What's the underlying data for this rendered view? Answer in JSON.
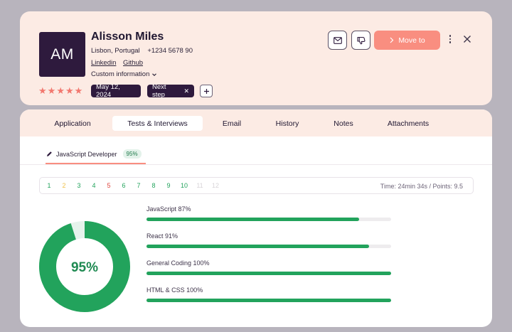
{
  "profile": {
    "initials": "AM",
    "name": "Alisson Miles",
    "location": "Lisbon, Portugal",
    "phone": "+1234 5678 90",
    "links": [
      "Linkedin",
      "Github"
    ],
    "custom_info_label": "Custom information",
    "rating": 5,
    "date_tag": "May 12, 2024",
    "step_tag": "Next step",
    "move_label": "Move to",
    "accent_color": "#f98e80",
    "dark_color": "#2e1a3d"
  },
  "tabs": [
    {
      "label": "Application",
      "active": false
    },
    {
      "label": "Tests & Interviews",
      "active": true
    },
    {
      "label": "Email",
      "active": false
    },
    {
      "label": "History",
      "active": false
    },
    {
      "label": "Notes",
      "active": false
    },
    {
      "label": "Attachments",
      "active": false
    }
  ],
  "test": {
    "name": "JavaScript Developer",
    "score_badge": "95%",
    "score_percent": 95,
    "score_label": "95%",
    "timing": "Time: 24min 34s / Points: 9.5",
    "questions": [
      {
        "n": "1",
        "color": "#22a35c"
      },
      {
        "n": "2",
        "color": "#f0c14a"
      },
      {
        "n": "3",
        "color": "#22a35c"
      },
      {
        "n": "4",
        "color": "#22a35c"
      },
      {
        "n": "5",
        "color": "#e0463f"
      },
      {
        "n": "6",
        "color": "#22a35c"
      },
      {
        "n": "7",
        "color": "#22a35c"
      },
      {
        "n": "8",
        "color": "#22a35c"
      },
      {
        "n": "9",
        "color": "#22a35c"
      },
      {
        "n": "10",
        "color": "#22a35c"
      },
      {
        "n": "11",
        "color": "#d8d4d8"
      },
      {
        "n": "12",
        "color": "#d8d4d8"
      }
    ],
    "skills": [
      {
        "label": "JavaScript 87%",
        "percent": 87
      },
      {
        "label": "React 91%",
        "percent": 91
      },
      {
        "label": "General Coding 100%",
        "percent": 100
      },
      {
        "label": "HTML & CSS 100%",
        "percent": 100
      }
    ],
    "success_color": "#22a35c"
  }
}
